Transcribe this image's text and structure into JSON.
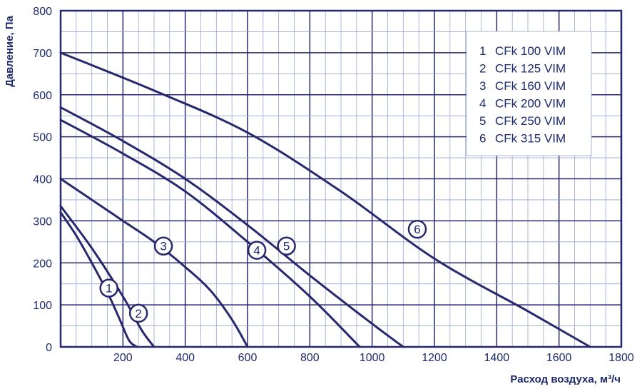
{
  "chart_data": {
    "type": "line",
    "xlabel": "Расход воздуха, м³/ч",
    "ylabel": "Давление, Па",
    "xlim": [
      0,
      1800
    ],
    "ylim": [
      0,
      800
    ],
    "x_ticks": [
      "200",
      "400",
      "600",
      "800",
      "1000",
      "1200",
      "1400",
      "1600",
      "1800"
    ],
    "y_ticks": [
      "0",
      "100",
      "200",
      "300",
      "400",
      "500",
      "600",
      "700",
      "800"
    ],
    "grid": true,
    "legend_position": "top-right",
    "line_color": "#27286e",
    "series": [
      {
        "name": "CFk 100 VIM",
        "num": "1",
        "x": [
          0,
          50,
          100,
          150,
          190,
          220,
          245
        ],
        "y": [
          320,
          265,
          200,
          130,
          65,
          15,
          0
        ]
      },
      {
        "name": "CFk 125 VIM",
        "num": "2",
        "x": [
          0,
          100,
          200,
          260,
          300
        ],
        "y": [
          335,
          235,
          120,
          40,
          0
        ]
      },
      {
        "name": "CFk 160 VIM",
        "num": "3",
        "x": [
          0,
          100,
          200,
          300,
          400,
          480,
          550,
          600
        ],
        "y": [
          400,
          350,
          300,
          250,
          190,
          135,
          65,
          0
        ]
      },
      {
        "name": "CFk 200 VIM",
        "num": "4",
        "x": [
          0,
          200,
          400,
          600,
          800,
          960
        ],
        "y": [
          540,
          460,
          370,
          250,
          120,
          0
        ]
      },
      {
        "name": "CFk 250 VIM",
        "num": "5",
        "x": [
          0,
          200,
          400,
          600,
          800,
          1000,
          1100
        ],
        "y": [
          570,
          490,
          400,
          290,
          170,
          55,
          0
        ]
      },
      {
        "name": "CFk 315 VIM",
        "num": "6",
        "x": [
          0,
          300,
          600,
          900,
          1200,
          1500,
          1700
        ],
        "y": [
          700,
          610,
          510,
          370,
          210,
          85,
          0
        ]
      }
    ],
    "markers": [
      {
        "label": "1",
        "x": 155,
        "y": 140
      },
      {
        "label": "2",
        "x": 250,
        "y": 80
      },
      {
        "label": "3",
        "x": 330,
        "y": 240
      },
      {
        "label": "4",
        "x": 630,
        "y": 230
      },
      {
        "label": "5",
        "x": 725,
        "y": 240
      },
      {
        "label": "6",
        "x": 1145,
        "y": 280
      }
    ]
  }
}
